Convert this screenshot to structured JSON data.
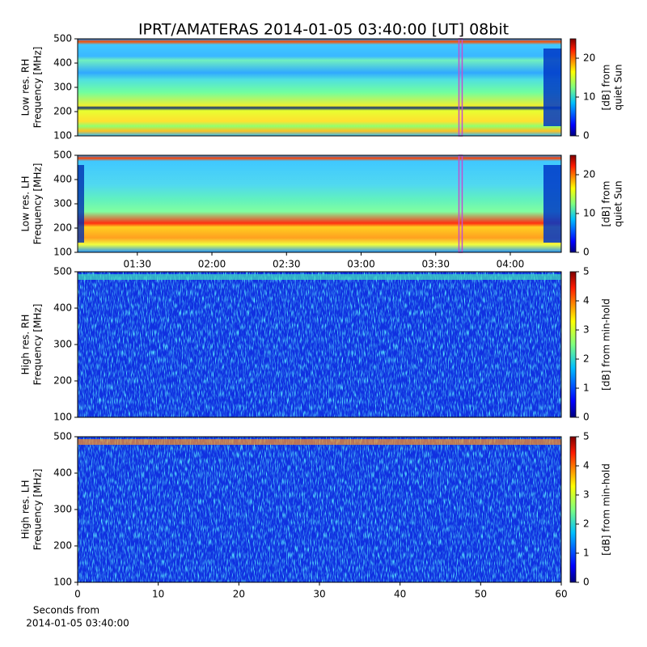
{
  "chart_data": [
    {
      "type": "spectrogram",
      "title": "IPRT/AMATERAS 2014-01-05 03:40:00 [UT]   08bit",
      "ylabel": [
        "Low res. RH",
        "Frequency [MHz]"
      ],
      "ylim": [
        100,
        500
      ],
      "yticks": [
        100,
        200,
        300,
        400,
        500
      ],
      "xlim": [
        66,
        260.5
      ],
      "marker": 220,
      "marker_color": "#c050d0",
      "clim": [
        0,
        25
      ],
      "cticks": [
        0,
        10,
        20
      ],
      "colorbar_label": [
        "[dB] from",
        "quiet Sun"
      ]
    },
    {
      "type": "spectrogram",
      "ylabel": [
        "Low res. LH",
        "Frequency [MHz]"
      ],
      "ylim": [
        100,
        500
      ],
      "yticks": [
        100,
        200,
        300,
        400,
        500
      ],
      "xlim": [
        66,
        260.5
      ],
      "marker": 220,
      "marker_color": "#c050d0",
      "xticks": [
        {
          "value": 90,
          "label": "01:30"
        },
        {
          "value": 120,
          "label": "02:00"
        },
        {
          "value": 150,
          "label": "02:30"
        },
        {
          "value": 180,
          "label": "03:00"
        },
        {
          "value": 210,
          "label": "03:30"
        },
        {
          "value": 240,
          "label": "04:00"
        }
      ],
      "clim": [
        0,
        25
      ],
      "cticks": [
        0,
        10,
        20
      ],
      "colorbar_label": [
        "[dB] from",
        "quiet Sun"
      ]
    },
    {
      "type": "spectrogram",
      "ylabel": [
        "High res. RH",
        "Frequency [MHz]"
      ],
      "ylim": [
        100,
        500
      ],
      "yticks": [
        100,
        200,
        300,
        400,
        500
      ],
      "xlim": [
        0,
        60
      ],
      "clim": [
        0,
        5
      ],
      "cticks": [
        0,
        1,
        2,
        3,
        4,
        5
      ],
      "colorbar_label": [
        "[dB] from min-hold"
      ]
    },
    {
      "type": "spectrogram",
      "ylabel": [
        "High res. LH",
        "Frequency [MHz]"
      ],
      "ylim": [
        100,
        500
      ],
      "yticks": [
        100,
        200,
        300,
        400,
        500
      ],
      "xlim": [
        0,
        60
      ],
      "xticks": [
        0,
        10,
        20,
        30,
        40,
        50,
        60
      ],
      "xlabel": [
        "Seconds from",
        "2014-01-05 03:40:00"
      ],
      "clim": [
        0,
        5
      ],
      "cticks": [
        0,
        1,
        2,
        3,
        4,
        5
      ],
      "colorbar_label": [
        "[dB] from min-hold"
      ]
    }
  ]
}
